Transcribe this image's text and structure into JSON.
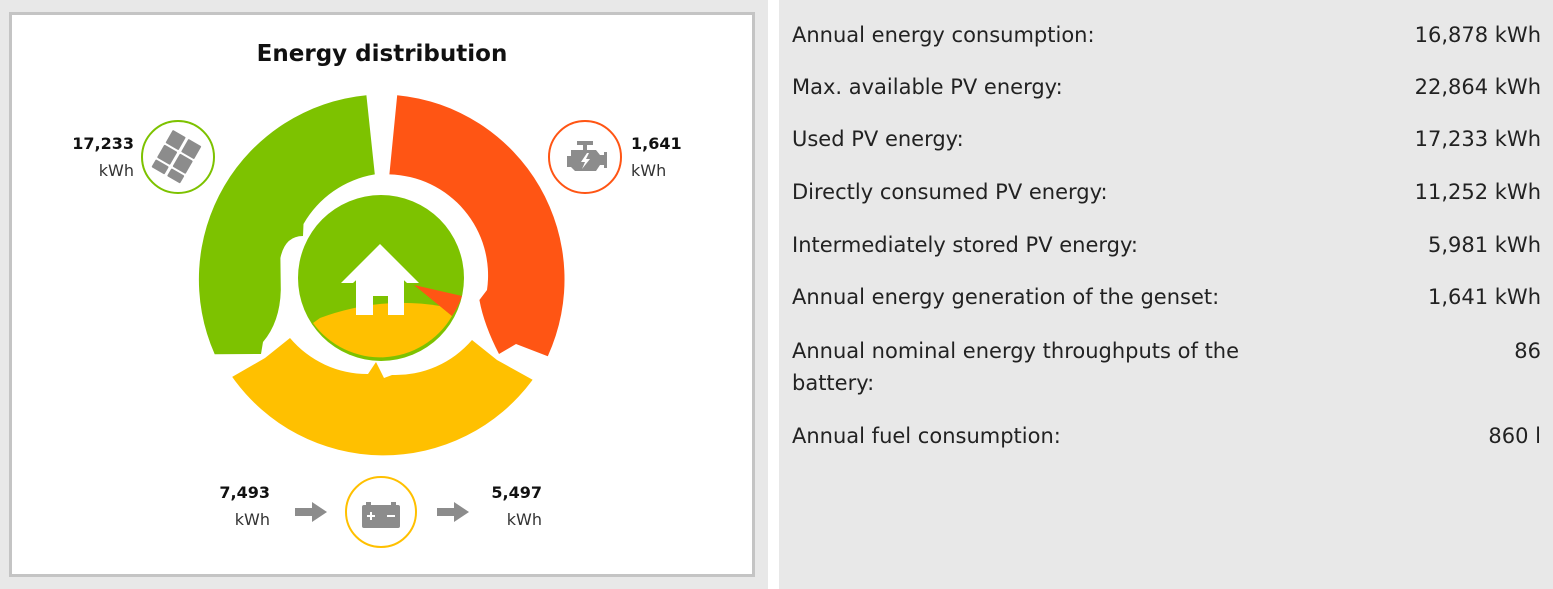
{
  "chart": {
    "title": "Energy distribution",
    "pv": {
      "value": "17,233",
      "unit": "kWh"
    },
    "genset": {
      "value": "1,641",
      "unit": "kWh"
    },
    "battery_in": {
      "value": "7,493",
      "unit": "kWh"
    },
    "battery_out": {
      "value": "5,497",
      "unit": "kWh"
    },
    "colors": {
      "pv": "#7dc200",
      "genset": "#ff5514",
      "battery": "#ffc000",
      "icon_gray": "#8c8c8c"
    }
  },
  "chart_data": {
    "type": "pie",
    "title": "Energy distribution",
    "slices": [
      {
        "label": "PV",
        "value": 17233,
        "unit": "kWh"
      },
      {
        "label": "Genset",
        "value": 1641,
        "unit": "kWh"
      },
      {
        "label": "Battery (charged)",
        "value": 7493,
        "unit": "kWh"
      },
      {
        "label": "Battery (discharged)",
        "value": 5497,
        "unit": "kWh"
      }
    ]
  },
  "stats": [
    {
      "label": "Annual energy consumption:",
      "value": "16,878 kWh"
    },
    {
      "label": "Max. available PV energy:",
      "value": "22,864 kWh"
    },
    {
      "label": "Used PV energy:",
      "value": "17,233 kWh"
    },
    {
      "label": "Directly consumed PV energy:",
      "value": "11,252 kWh"
    },
    {
      "label": "Intermediately stored PV energy:",
      "value": "5,981 kWh"
    },
    {
      "label": "Annual energy generation of the genset:",
      "value": "1,641 kWh"
    },
    {
      "label": "Annual nominal energy throughputs of the battery:",
      "value": "86"
    },
    {
      "label": "Annual fuel consumption:",
      "value": "860 l"
    }
  ]
}
